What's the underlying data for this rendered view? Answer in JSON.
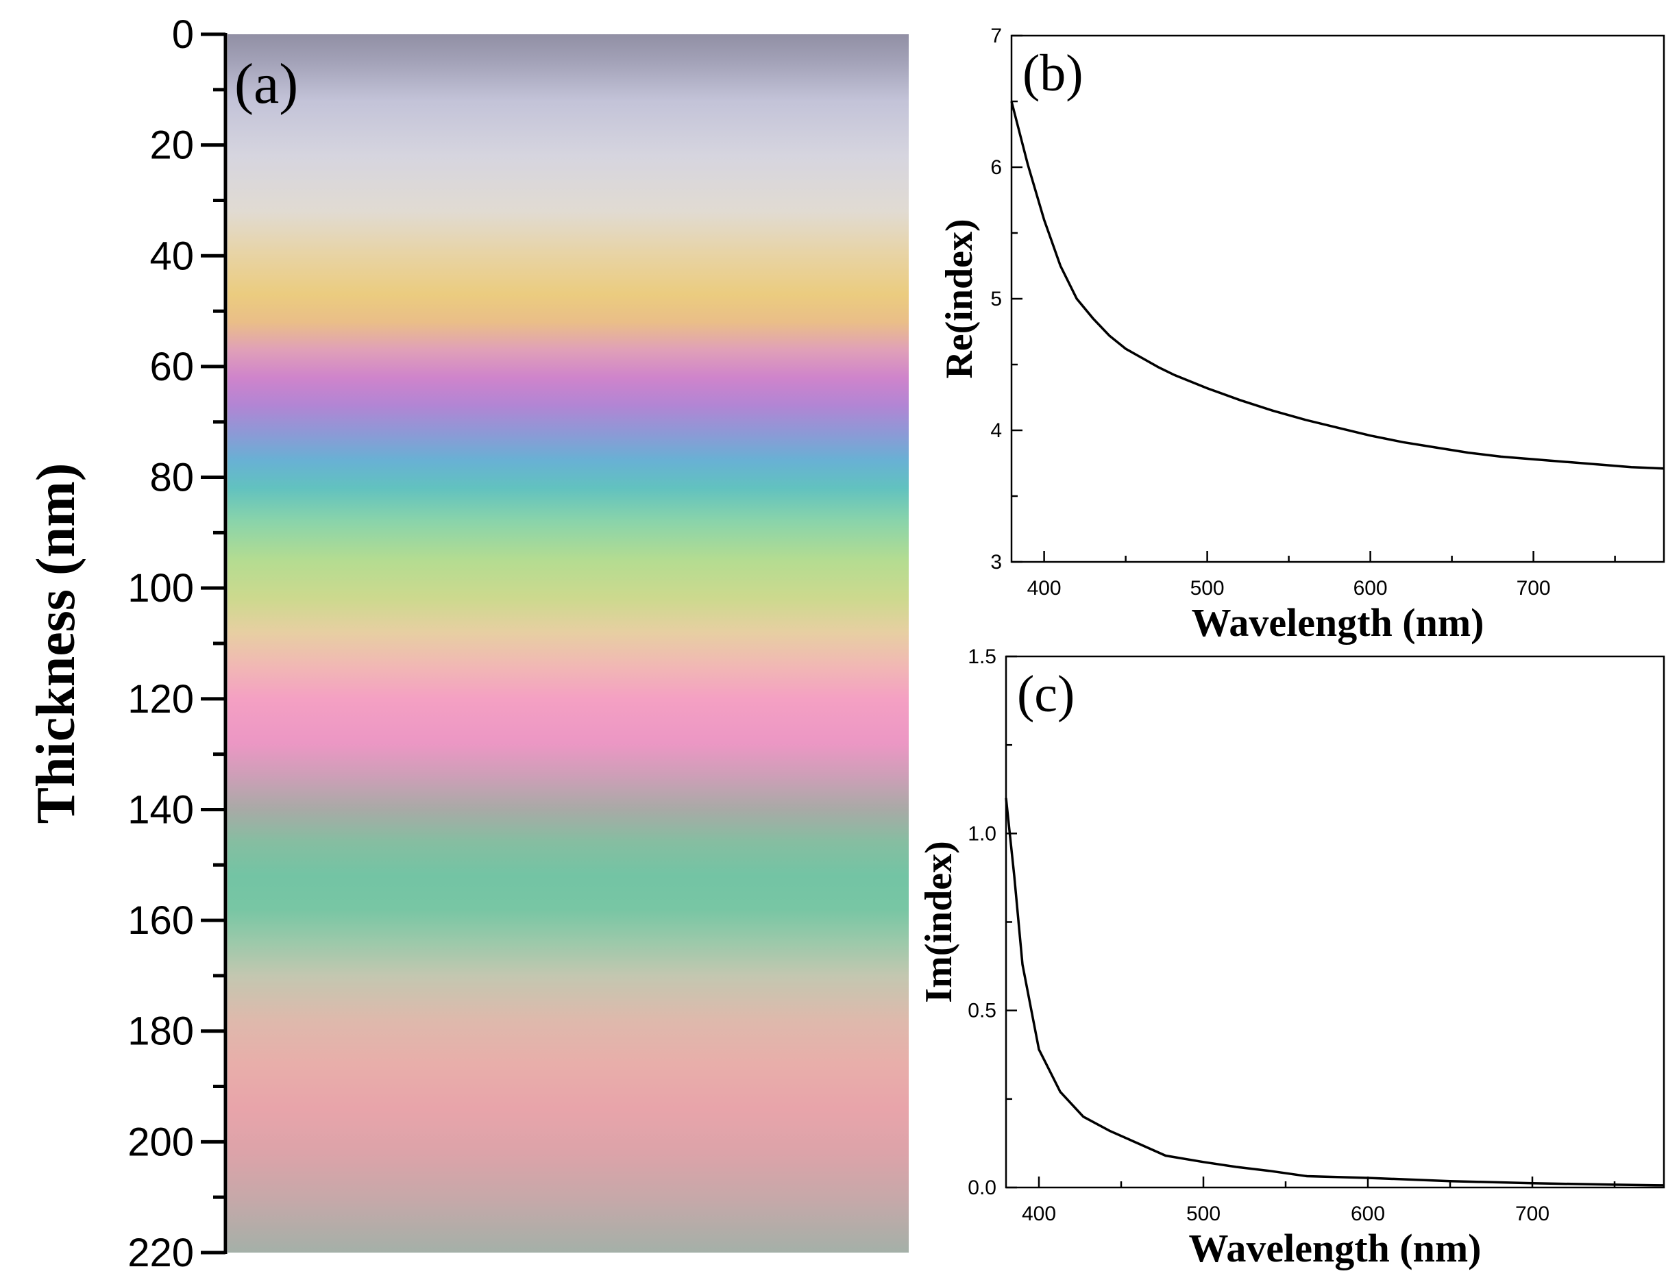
{
  "chart_data": [
    {
      "id": "a",
      "type": "heatmap",
      "panel_label": "(a)",
      "ylabel": "Thickness (nm)",
      "ylim": [
        0,
        220
      ],
      "y_tick_labels": [
        "0",
        "20",
        "40",
        "60",
        "80",
        "100",
        "120",
        "140",
        "160",
        "180",
        "200",
        "220"
      ],
      "y_ticks": [
        0,
        20,
        40,
        60,
        80,
        100,
        120,
        140,
        160,
        180,
        200,
        220
      ],
      "y_minor_ticks": [
        10,
        30,
        50,
        70,
        90,
        110,
        130,
        150,
        170,
        190,
        210
      ],
      "color_stops": [
        {
          "thickness": 0,
          "color": "#918fa4"
        },
        {
          "thickness": 5,
          "color": "#a3a2b8"
        },
        {
          "thickness": 12,
          "color": "#c3c3d8"
        },
        {
          "thickness": 22,
          "color": "#d6d5df"
        },
        {
          "thickness": 32,
          "color": "#e1dbd2"
        },
        {
          "thickness": 40,
          "color": "#e8d3a3"
        },
        {
          "thickness": 47,
          "color": "#ebcc7f"
        },
        {
          "thickness": 52,
          "color": "#eabe88"
        },
        {
          "thickness": 57,
          "color": "#e0a0b8"
        },
        {
          "thickness": 62,
          "color": "#cf84cb"
        },
        {
          "thickness": 67,
          "color": "#b285d4"
        },
        {
          "thickness": 72,
          "color": "#8d99d6"
        },
        {
          "thickness": 77,
          "color": "#68b1d4"
        },
        {
          "thickness": 82,
          "color": "#62c2bf"
        },
        {
          "thickness": 88,
          "color": "#8ad4aa"
        },
        {
          "thickness": 95,
          "color": "#b4dc91"
        },
        {
          "thickness": 102,
          "color": "#cdd98e"
        },
        {
          "thickness": 108,
          "color": "#e7cfa2"
        },
        {
          "thickness": 114,
          "color": "#f1b8b4"
        },
        {
          "thickness": 120,
          "color": "#f4a0c3"
        },
        {
          "thickness": 128,
          "color": "#ec97c4"
        },
        {
          "thickness": 134,
          "color": "#cd9fb7"
        },
        {
          "thickness": 140,
          "color": "#a8aaa6"
        },
        {
          "thickness": 146,
          "color": "#85bea1"
        },
        {
          "thickness": 152,
          "color": "#73c4a4"
        },
        {
          "thickness": 158,
          "color": "#78c6a4"
        },
        {
          "thickness": 164,
          "color": "#9cc9aa"
        },
        {
          "thickness": 170,
          "color": "#c3c7b0"
        },
        {
          "thickness": 178,
          "color": "#deb9ac"
        },
        {
          "thickness": 186,
          "color": "#e8aeaa"
        },
        {
          "thickness": 194,
          "color": "#e8a4aa"
        },
        {
          "thickness": 202,
          "color": "#dca3a9"
        },
        {
          "thickness": 210,
          "color": "#c7a8a9"
        },
        {
          "thickness": 220,
          "color": "#a4b0a8"
        }
      ]
    },
    {
      "id": "b",
      "type": "line",
      "panel_label": "(b)",
      "xlabel": "Wavelength (nm)",
      "ylabel": "Re(index)",
      "xlim": [
        380,
        780
      ],
      "ylim": [
        3,
        7
      ],
      "x_ticks": [
        400,
        500,
        600,
        700
      ],
      "x_tick_labels": [
        "400",
        "500",
        "600",
        "700"
      ],
      "y_ticks": [
        3,
        4,
        5,
        6,
        7
      ],
      "y_tick_labels": [
        "3",
        "4",
        "5",
        "6",
        "7"
      ],
      "line_color": "#000000",
      "x": [
        380,
        390,
        400,
        410,
        420,
        430,
        440,
        450,
        460,
        470,
        480,
        490,
        500,
        520,
        540,
        560,
        580,
        600,
        620,
        640,
        660,
        680,
        700,
        720,
        740,
        760,
        780
      ],
      "y": [
        6.5,
        6.02,
        5.6,
        5.25,
        5.0,
        4.85,
        4.72,
        4.62,
        4.55,
        4.48,
        4.42,
        4.37,
        4.32,
        4.23,
        4.15,
        4.08,
        4.02,
        3.96,
        3.91,
        3.87,
        3.83,
        3.8,
        3.78,
        3.76,
        3.74,
        3.72,
        3.71
      ]
    },
    {
      "id": "c",
      "type": "line",
      "panel_label": "(c)",
      "xlabel": "Wavelength (nm)",
      "ylabel": "Im(index)",
      "xlim": [
        380,
        780
      ],
      "ylim": [
        0,
        1.5
      ],
      "x_ticks": [
        400,
        500,
        600,
        700
      ],
      "x_tick_labels": [
        "400",
        "500",
        "600",
        "700"
      ],
      "y_ticks": [
        0,
        0.5,
        1.0,
        1.5
      ],
      "y_tick_labels": [
        "0.0",
        "0.5",
        "1.0",
        "1.5"
      ],
      "line_color": "#000000",
      "x": [
        380,
        385,
        390,
        400,
        413,
        427,
        443,
        460,
        477,
        500,
        520,
        540,
        563,
        600,
        650,
        700,
        750,
        780
      ],
      "y": [
        1.1,
        0.88,
        0.63,
        0.39,
        0.27,
        0.2,
        0.16,
        0.125,
        0.09,
        0.072,
        0.058,
        0.047,
        0.032,
        0.027,
        0.018,
        0.012,
        0.008,
        0.006
      ]
    }
  ]
}
